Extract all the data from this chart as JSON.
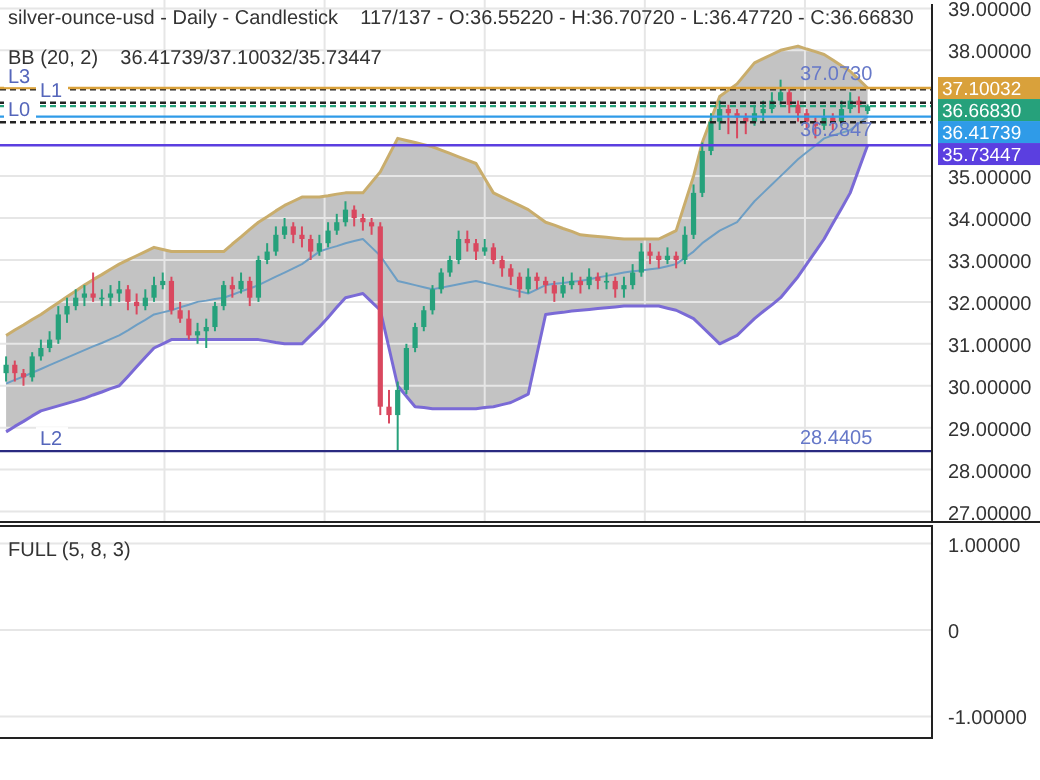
{
  "chart_data": [
    {
      "type": "candlestick",
      "title": "silver-ounce-usd - Daily - Candlestick    117/137 - O:36.55220 - H:36.70720 - L:36.47720 - C:36.66830",
      "subtitle": "BB (20, 2)    36.41739/37.10032/35.73447",
      "categories": [
        null,
        null,
        null,
        null,
        null,
        null,
        null,
        null,
        null,
        null,
        null,
        null,
        null,
        null,
        null,
        null,
        null,
        null,
        null,
        null,
        null,
        null,
        null,
        null,
        null,
        null,
        null,
        null,
        null,
        null,
        null,
        null,
        null,
        null,
        null,
        null,
        null,
        null,
        null,
        null,
        null,
        null,
        null,
        null,
        null,
        null,
        null,
        null,
        null,
        null,
        null,
        null,
        null,
        null,
        null,
        null,
        null,
        null,
        null,
        null,
        null,
        null,
        null,
        null,
        null,
        null,
        null,
        null,
        null,
        null,
        null,
        null,
        null,
        null,
        null,
        null,
        null,
        null,
        null,
        null,
        null,
        null,
        null,
        null,
        null,
        null,
        null,
        null,
        null,
        null,
        null,
        null,
        null,
        null,
        null,
        null,
        null,
        null,
        null,
        null
      ],
      "ohlc": [
        [
          30.3,
          30.7,
          30.1,
          30.5
        ],
        [
          30.5,
          30.6,
          30.1,
          30.3
        ],
        [
          30.3,
          30.4,
          30.0,
          30.2
        ],
        [
          30.2,
          30.8,
          30.1,
          30.7
        ],
        [
          30.7,
          31.1,
          30.6,
          30.9
        ],
        [
          30.9,
          31.3,
          30.8,
          31.1
        ],
        [
          31.1,
          31.9,
          31.0,
          31.7
        ],
        [
          31.7,
          32.1,
          31.5,
          31.9
        ],
        [
          31.9,
          32.3,
          31.8,
          32.1
        ],
        [
          32.1,
          32.4,
          31.9,
          32.2
        ],
        [
          32.2,
          32.7,
          32.0,
          32.1
        ],
        [
          32.1,
          32.3,
          31.9,
          32.1
        ],
        [
          32.1,
          32.4,
          31.9,
          32.2
        ],
        [
          32.2,
          32.5,
          32.0,
          32.3
        ],
        [
          32.3,
          32.4,
          31.8,
          32.0
        ],
        [
          32.0,
          32.2,
          31.7,
          31.9
        ],
        [
          31.9,
          32.3,
          31.8,
          32.1
        ],
        [
          32.1,
          32.6,
          32.0,
          32.4
        ],
        [
          32.4,
          32.7,
          32.3,
          32.5
        ],
        [
          32.5,
          32.6,
          31.7,
          31.8
        ],
        [
          31.8,
          32.0,
          31.5,
          31.6
        ],
        [
          31.6,
          31.8,
          31.1,
          31.2
        ],
        [
          31.2,
          31.5,
          31.0,
          31.3
        ],
        [
          31.3,
          31.6,
          30.9,
          31.4
        ],
        [
          31.4,
          32.0,
          31.3,
          31.9
        ],
        [
          31.9,
          32.5,
          31.8,
          32.4
        ],
        [
          32.4,
          32.6,
          32.1,
          32.3
        ],
        [
          32.3,
          32.7,
          32.2,
          32.5
        ],
        [
          32.5,
          32.6,
          31.9,
          32.1
        ],
        [
          32.1,
          33.1,
          32.0,
          33.0
        ],
        [
          33.0,
          33.4,
          32.9,
          33.2
        ],
        [
          33.2,
          33.8,
          33.1,
          33.6
        ],
        [
          33.6,
          34.0,
          33.5,
          33.8
        ],
        [
          33.8,
          33.9,
          33.4,
          33.6
        ],
        [
          33.6,
          33.8,
          33.3,
          33.5
        ],
        [
          33.5,
          33.6,
          33.0,
          33.2
        ],
        [
          33.2,
          33.6,
          33.1,
          33.4
        ],
        [
          33.4,
          33.9,
          33.3,
          33.7
        ],
        [
          33.7,
          34.1,
          33.6,
          33.9
        ],
        [
          33.9,
          34.4,
          33.8,
          34.2
        ],
        [
          34.2,
          34.3,
          33.8,
          34.0
        ],
        [
          34.0,
          34.1,
          33.7,
          33.9
        ],
        [
          33.9,
          34.0,
          33.6,
          33.8
        ],
        [
          33.8,
          33.9,
          29.3,
          29.5
        ],
        [
          29.5,
          29.9,
          29.1,
          29.3
        ],
        [
          29.3,
          30.1,
          28.4405,
          29.9
        ],
        [
          29.9,
          31.0,
          29.8,
          30.9
        ],
        [
          30.9,
          31.5,
          30.8,
          31.4
        ],
        [
          31.4,
          31.9,
          31.3,
          31.8
        ],
        [
          31.8,
          32.4,
          31.7,
          32.3
        ],
        [
          32.3,
          32.8,
          32.2,
          32.7
        ],
        [
          32.7,
          33.1,
          32.6,
          33.0
        ],
        [
          33.0,
          33.7,
          32.9,
          33.5
        ],
        [
          33.5,
          33.7,
          33.2,
          33.4
        ],
        [
          33.4,
          33.5,
          33.0,
          33.2
        ],
        [
          33.2,
          33.5,
          33.1,
          33.3
        ],
        [
          33.3,
          33.4,
          32.9,
          33.0
        ],
        [
          33.0,
          33.1,
          32.6,
          32.8
        ],
        [
          32.8,
          32.9,
          32.4,
          32.6
        ],
        [
          32.6,
          32.7,
          32.1,
          32.3
        ],
        [
          32.3,
          32.8,
          32.2,
          32.6
        ],
        [
          32.6,
          32.7,
          32.3,
          32.5
        ],
        [
          32.5,
          32.6,
          32.2,
          32.4
        ],
        [
          32.4,
          32.5,
          32.0,
          32.2
        ],
        [
          32.2,
          32.6,
          32.1,
          32.4
        ],
        [
          32.4,
          32.7,
          32.3,
          32.5
        ],
        [
          32.5,
          32.6,
          32.2,
          32.4
        ],
        [
          32.4,
          32.8,
          32.3,
          32.6
        ],
        [
          32.6,
          32.7,
          32.3,
          32.5
        ],
        [
          32.5,
          32.7,
          32.3,
          32.5
        ],
        [
          32.5,
          32.6,
          32.1,
          32.3
        ],
        [
          32.3,
          32.6,
          32.1,
          32.4
        ],
        [
          32.4,
          32.9,
          32.3,
          32.7
        ],
        [
          32.7,
          33.4,
          32.6,
          33.2
        ],
        [
          33.2,
          33.4,
          32.9,
          33.1
        ],
        [
          33.1,
          33.2,
          32.8,
          33.0
        ],
        [
          33.0,
          33.3,
          32.9,
          33.1
        ],
        [
          33.1,
          33.2,
          32.8,
          33.0
        ],
        [
          33.0,
          33.8,
          32.9,
          33.6
        ],
        [
          33.6,
          34.8,
          33.5,
          34.6
        ],
        [
          34.6,
          35.8,
          34.5,
          35.6
        ],
        [
          35.6,
          36.5,
          35.5,
          36.3
        ],
        [
          36.3,
          36.8,
          36.1,
          36.6
        ],
        [
          36.6,
          36.7,
          36.0,
          36.5
        ],
        [
          36.5,
          36.6,
          35.9,
          36.4
        ],
        [
          36.4,
          36.5,
          36.0,
          36.3
        ],
        [
          36.3,
          36.7,
          36.2,
          36.5
        ],
        [
          36.5,
          36.8,
          36.3,
          36.6
        ],
        [
          36.6,
          37.0,
          36.5,
          36.8
        ],
        [
          36.8,
          37.3,
          36.7,
          37.0
        ],
        [
          37.0,
          37.1,
          36.5,
          36.7
        ],
        [
          36.7,
          36.8,
          36.3,
          36.5
        ],
        [
          36.5,
          36.6,
          36.1,
          36.3
        ],
        [
          36.3,
          36.4,
          35.9,
          36.2
        ],
        [
          36.2,
          36.6,
          36.1,
          36.4
        ],
        [
          36.4,
          36.5,
          36.1,
          36.3
        ],
        [
          36.3,
          36.8,
          36.2,
          36.6
        ],
        [
          36.6,
          37.0,
          36.5,
          36.8
        ],
        [
          36.8,
          36.9,
          36.5,
          36.7
        ],
        [
          36.5522,
          36.7072,
          36.4772,
          36.6683
        ]
      ],
      "colors": [
        "#26a17b",
        "#d9485f",
        "#d9485f",
        "#26a17b",
        "#26a17b",
        "#26a17b",
        "#26a17b",
        "#26a17b",
        "#26a17b",
        "#26a17b",
        "#d9485f",
        "#26a17b",
        "#26a17b",
        "#26a17b",
        "#d9485f",
        "#d9485f",
        "#26a17b",
        "#26a17b",
        "#26a17b",
        "#d9485f",
        "#d9485f",
        "#d9485f",
        "#26a17b",
        "#26a17b",
        "#26a17b",
        "#26a17b",
        "#d9485f",
        "#26a17b",
        "#d9485f",
        "#26a17b",
        "#26a17b",
        "#26a17b",
        "#26a17b",
        "#d9485f",
        "#d9485f",
        "#d9485f",
        "#26a17b",
        "#26a17b",
        "#26a17b",
        "#26a17b",
        "#d9485f",
        "#d9485f",
        "#d9485f",
        "#d9485f",
        "#d9485f",
        "#26a17b",
        "#26a17b",
        "#26a17b",
        "#26a17b",
        "#26a17b",
        "#26a17b",
        "#26a17b",
        "#26a17b",
        "#d9485f",
        "#d9485f",
        "#26a17b",
        "#d9485f",
        "#d9485f",
        "#d9485f",
        "#d9485f",
        "#26a17b",
        "#d9485f",
        "#d9485f",
        "#d9485f",
        "#26a17b",
        "#26a17b",
        "#d9485f",
        "#26a17b",
        "#d9485f",
        "#26a17b",
        "#d9485f",
        "#26a17b",
        "#26a17b",
        "#26a17b",
        "#d9485f",
        "#d9485f",
        "#26a17b",
        "#d9485f",
        "#26a17b",
        "#26a17b",
        "#26a17b",
        "#26a17b",
        "#26a17b",
        "#d9485f",
        "#d9485f",
        "#d9485f",
        "#26a17b",
        "#26a17b",
        "#26a17b",
        "#26a17b",
        "#d9485f",
        "#d9485f",
        "#d9485f",
        "#d9485f",
        "#26a17b",
        "#d9485f",
        "#26a17b",
        "#26a17b",
        "#d9485f",
        "#26a17b"
      ],
      "series": [
        {
          "type": "line",
          "color": "#c9ad6c",
          "values": [
            31.2,
            31.33,
            31.45,
            31.58,
            31.7,
            31.84,
            31.98,
            32.12,
            32.26,
            32.4,
            32.53,
            32.65,
            32.78,
            32.9,
            33.0,
            33.1,
            33.2,
            33.3,
            33.25,
            33.2,
            33.2,
            33.2,
            33.2,
            33.2,
            33.2,
            33.2,
            33.38,
            33.55,
            33.73,
            33.9,
            34.03,
            34.17,
            34.3,
            34.4,
            34.5,
            34.5,
            34.5,
            34.53,
            34.57,
            34.6,
            34.6,
            34.6,
            34.85,
            35.1,
            35.5,
            35.9,
            35.85,
            35.8,
            35.75,
            35.7,
            35.62,
            35.54,
            35.46,
            35.38,
            35.3,
            34.95,
            34.6,
            34.5,
            34.4,
            34.3,
            34.2,
            34.05,
            33.9,
            33.83,
            33.75,
            33.68,
            33.6,
            33.58,
            33.56,
            33.54,
            33.52,
            33.5,
            33.5,
            33.5,
            33.5,
            33.5,
            33.6,
            33.7,
            34.35,
            35.0,
            35.8,
            36.35,
            36.9,
            37.05,
            37.2,
            37.45,
            37.7,
            37.8,
            37.9,
            38.0,
            38.05,
            38.1,
            38.03,
            37.97,
            37.9,
            37.77,
            37.63,
            37.5,
            37.3,
            37.10032
          ]
        },
        {
          "type": "line",
          "color": "#7a6ad6",
          "values": [
            28.9,
            29.03,
            29.15,
            29.28,
            29.4,
            29.46,
            29.52,
            29.58,
            29.64,
            29.7,
            29.78,
            29.85,
            29.93,
            30.0,
            30.22,
            30.45,
            30.68,
            30.9,
            31.0,
            31.1,
            31.1,
            31.1,
            31.1,
            31.1,
            31.1,
            31.1,
            31.1,
            31.1,
            31.1,
            31.1,
            31.07,
            31.03,
            31.0,
            31.0,
            31.0,
            31.2,
            31.4,
            31.63,
            31.87,
            32.1,
            32.15,
            32.2,
            32.0,
            31.8,
            30.9,
            30.0,
            29.75,
            29.5,
            29.48,
            29.45,
            29.45,
            29.45,
            29.45,
            29.45,
            29.45,
            29.48,
            29.5,
            29.55,
            29.6,
            29.7,
            29.8,
            30.75,
            31.7,
            31.73,
            31.75,
            31.78,
            31.8,
            31.82,
            31.84,
            31.86,
            31.88,
            31.9,
            31.9,
            31.9,
            31.9,
            31.9,
            31.85,
            31.8,
            31.7,
            31.6,
            31.4,
            31.2,
            31.0,
            31.1,
            31.2,
            31.4,
            31.6,
            31.77,
            31.93,
            32.1,
            32.35,
            32.6,
            32.9,
            33.2,
            33.5,
            33.87,
            34.23,
            34.6,
            35.17,
            35.73447
          ]
        },
        {
          "type": "line",
          "color": "#6d9ec4",
          "values": [
            30.05,
            30.14,
            30.22,
            30.31,
            30.4,
            30.49,
            30.58,
            30.67,
            30.76,
            30.85,
            30.94,
            31.02,
            31.11,
            31.2,
            31.32,
            31.45,
            31.57,
            31.7,
            31.75,
            31.8,
            31.87,
            31.93,
            32.0,
            32.03,
            32.07,
            32.1,
            32.17,
            32.25,
            32.32,
            32.4,
            32.5,
            32.6,
            32.7,
            32.8,
            32.9,
            33.05,
            33.2,
            33.27,
            33.33,
            33.4,
            33.45,
            33.5,
            33.3,
            33.1,
            32.8,
            32.5,
            32.45,
            32.4,
            32.35,
            32.3,
            32.34,
            32.38,
            32.42,
            32.46,
            32.5,
            32.45,
            32.4,
            32.35,
            32.3,
            32.25,
            32.2,
            32.3,
            32.4,
            32.43,
            32.45,
            32.48,
            32.5,
            32.54,
            32.58,
            32.62,
            32.66,
            32.7,
            32.73,
            32.75,
            32.78,
            32.8,
            32.85,
            32.9,
            33.05,
            33.2,
            33.4,
            33.55,
            33.7,
            33.8,
            33.9,
            34.15,
            34.4,
            34.6,
            34.8,
            35.0,
            35.2,
            35.4,
            35.57,
            35.73,
            35.9,
            35.97,
            36.03,
            36.1,
            36.26,
            36.41739
          ],
          "upper": [
            31.2,
            31.33,
            31.45,
            31.58,
            31.7,
            31.84,
            31.98,
            32.12,
            32.26,
            32.4,
            32.53,
            32.65,
            32.78,
            32.9,
            33.0,
            33.1,
            33.2,
            33.3,
            33.25,
            33.2,
            33.2,
            33.2,
            33.2,
            33.2,
            33.2,
            33.2,
            33.38,
            33.55,
            33.73,
            33.9,
            34.03,
            34.17,
            34.3,
            34.4,
            34.5,
            34.5,
            34.5,
            34.53,
            34.57,
            34.6,
            34.6,
            34.6,
            34.85,
            35.1,
            35.5,
            35.9,
            35.85,
            35.8,
            35.75,
            35.7,
            35.62,
            35.54,
            35.46,
            35.38,
            35.3,
            34.95,
            34.6,
            34.5,
            34.4,
            34.3,
            34.2,
            34.05,
            33.9,
            33.83,
            33.75,
            33.68,
            33.6,
            33.58,
            33.56,
            33.54,
            33.52,
            33.5,
            33.5,
            33.5,
            33.5,
            33.5,
            33.6,
            33.7,
            34.35,
            35.0,
            35.8,
            36.35,
            36.9,
            37.05,
            37.2,
            37.45,
            37.7,
            37.8,
            37.9,
            38.0,
            38.05,
            38.1,
            38.03,
            37.97,
            37.9,
            37.77,
            37.63,
            37.5,
            37.3,
            37.10032
          ],
          "lower": [
            28.9,
            29.03,
            29.15,
            29.28,
            29.4,
            29.46,
            29.52,
            29.58,
            29.64,
            29.7,
            29.78,
            29.85,
            29.93,
            30.0,
            30.22,
            30.45,
            30.68,
            30.9,
            31.0,
            31.1,
            31.1,
            31.1,
            31.1,
            31.1,
            31.1,
            31.1,
            31.1,
            31.1,
            31.1,
            31.1,
            31.07,
            31.03,
            31.0,
            31.0,
            31.0,
            31.2,
            31.4,
            31.63,
            31.87,
            32.1,
            32.15,
            32.2,
            32.0,
            31.8,
            30.9,
            30.0,
            29.75,
            29.5,
            29.48,
            29.45,
            29.45,
            29.45,
            29.45,
            29.45,
            29.45,
            29.48,
            29.5,
            29.55,
            29.6,
            29.7,
            29.8,
            30.75,
            31.7,
            31.73,
            31.75,
            31.78,
            31.8,
            31.82,
            31.84,
            31.86,
            31.88,
            31.9,
            31.9,
            31.9,
            31.9,
            31.9,
            31.85,
            31.8,
            31.7,
            31.6,
            31.4,
            31.2,
            31.0,
            31.1,
            31.2,
            31.4,
            31.6,
            31.77,
            31.93,
            32.1,
            32.35,
            32.6,
            32.9,
            33.2,
            33.5,
            33.87,
            34.23,
            34.6,
            35.17,
            35.73447
          ]
        }
      ],
      "ylim": [
        26.75,
        39.2
      ],
      "yticks": [
        {
          "value": 27,
          "label": "27.00000"
        },
        {
          "value": 28,
          "label": "28.00000"
        },
        {
          "value": 29,
          "label": "29.00000"
        },
        {
          "value": 30,
          "label": "30.00000"
        },
        {
          "value": 31,
          "label": "31.00000"
        },
        {
          "value": 32,
          "label": "32.00000"
        },
        {
          "value": 33,
          "label": "33.00000"
        },
        {
          "value": 34,
          "label": "34.00000"
        },
        {
          "value": 35,
          "label": "35.00000"
        },
        {
          "value": 38,
          "label": "38.00000"
        },
        {
          "value": 39,
          "label": "39.00000"
        }
      ],
      "tick_labels": "y",
      "grid": true,
      "ref_lines": [
        {
          "axis": "y",
          "value": 37.073,
          "label": "L3",
          "line_style": "dashed"
        },
        {
          "axis": "y",
          "value": 36.75,
          "label": "L1",
          "line_style": "dashed"
        },
        {
          "axis": "y",
          "value": 36.2847,
          "label": "L0",
          "line_style": "dashed"
        },
        {
          "axis": "y",
          "value": 28.4405,
          "label": "L2",
          "line_style": "solid"
        },
        {
          "axis": "y",
          "value": 37.10032,
          "label": "37.10032",
          "color": "#d9a13b",
          "line_style": "solid"
        },
        {
          "axis": "y",
          "value": 36.6683,
          "label": "36.66830",
          "color": "#26a17b",
          "line_style": "dashed"
        },
        {
          "axis": "y",
          "value": 36.41739,
          "label": "36.41739",
          "color": "#2f9be8",
          "line_style": "solid"
        },
        {
          "axis": "y",
          "value": 35.73447,
          "label": "35.73447",
          "color": "#5b3fe0",
          "line_style": "solid"
        }
      ],
      "annotations": [
        {
          "text": "37.0730",
          "y": 37.3
        },
        {
          "text": "36.2847",
          "y": 35.95
        },
        {
          "text": "28.4405",
          "y": 28.6
        }
      ]
    },
    {
      "type": "other",
      "title": "FULL (5, 8, 3)",
      "annotations": [
        "1.00000",
        "0",
        "-1.00000"
      ]
    }
  ]
}
